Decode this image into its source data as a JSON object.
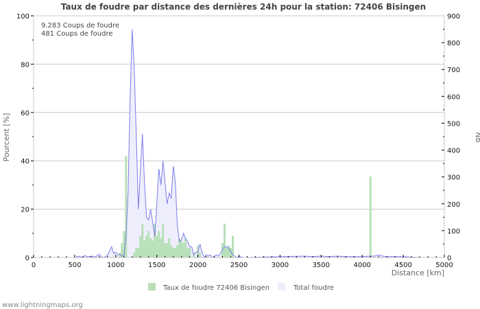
{
  "chart_data": {
    "type": "bar",
    "title": "Taux de foudre par distance des dernières 24h pour la station: 72406 Bisingen",
    "xlabel": "Distance   [km]",
    "ylabel": "Pourcent   [%]",
    "ylabel_right": "Nb",
    "xlim": [
      0,
      5000
    ],
    "ylim": [
      0,
      100
    ],
    "ylim_right": [
      0,
      900
    ],
    "x_ticks": [
      0,
      500,
      1000,
      1500,
      2000,
      2500,
      3000,
      3500,
      4000,
      4500,
      5000
    ],
    "y_ticks": [
      0,
      20,
      40,
      60,
      80,
      100
    ],
    "y_ticks_right": [
      0,
      100,
      200,
      300,
      400,
      500,
      600,
      700,
      800,
      900
    ],
    "grid": true,
    "legend_position": "bottom",
    "annotations": [
      "9.283  Coups de foudre",
      "481  Coups de foudre"
    ],
    "series": [
      {
        "name": "Taux de foudre 72406 Bisingen",
        "type": "bar",
        "axis": "left",
        "color": "#b7e0b8",
        "x": [
          1050,
          1075,
          1100,
          1125,
          1225,
          1250,
          1275,
          1300,
          1325,
          1350,
          1375,
          1400,
          1425,
          1450,
          1475,
          1500,
          1525,
          1550,
          1575,
          1600,
          1625,
          1650,
          1675,
          1700,
          1725,
          1750,
          1775,
          1800,
          1825,
          1850,
          1875,
          1900,
          1950,
          2000,
          2025,
          2300,
          2325,
          2350,
          2375,
          2400,
          2425,
          4100
        ],
        "values": [
          2,
          6,
          11,
          42,
          2,
          4,
          4,
          9,
          14,
          7,
          9,
          11,
          8,
          7,
          14,
          9,
          11,
          8,
          14,
          6,
          6,
          8,
          5,
          4,
          4,
          5,
          8,
          7,
          6,
          8,
          4,
          4,
          2,
          5,
          2,
          6,
          14,
          4,
          5,
          4,
          9,
          33.5
        ]
      },
      {
        "name": "Total foudre",
        "type": "area",
        "axis": "right",
        "color": "#7b7bea",
        "fill": "#eeeefc",
        "x": [
          0,
          500,
          550,
          600,
          625,
          650,
          700,
          750,
          800,
          825,
          850,
          900,
          950,
          975,
          1000,
          1025,
          1050,
          1075,
          1100,
          1125,
          1150,
          1175,
          1200,
          1225,
          1250,
          1275,
          1300,
          1325,
          1350,
          1375,
          1400,
          1425,
          1450,
          1475,
          1500,
          1525,
          1550,
          1575,
          1600,
          1625,
          1650,
          1675,
          1700,
          1725,
          1750,
          1775,
          1800,
          1825,
          1850,
          1875,
          1900,
          1925,
          1950,
          1975,
          2000,
          2025,
          2050,
          2075,
          2100,
          2125,
          2150,
          2175,
          2200,
          2225,
          2250,
          2275,
          2300,
          2325,
          2350,
          2375,
          2400,
          2425,
          2450,
          2475,
          2500,
          2550,
          3300,
          3400,
          3500,
          3600,
          3700,
          3800,
          3900,
          4000,
          4100,
          4150,
          4200,
          4250,
          4300,
          4350,
          4400,
          4500,
          4700,
          5000
        ],
        "values": [
          0,
          0,
          5,
          0,
          8,
          2,
          5,
          2,
          12,
          3,
          0,
          8,
          40,
          15,
          20,
          10,
          12,
          5,
          8,
          80,
          240,
          600,
          850,
          700,
          450,
          180,
          320,
          460,
          280,
          150,
          140,
          180,
          130,
          80,
          200,
          330,
          270,
          360,
          280,
          200,
          240,
          220,
          340,
          280,
          120,
          60,
          65,
          90,
          70,
          60,
          40,
          40,
          10,
          20,
          20,
          50,
          20,
          0,
          10,
          5,
          10,
          0,
          5,
          10,
          5,
          15,
          30,
          40,
          40,
          35,
          20,
          10,
          5,
          0,
          5,
          0,
          5,
          3,
          5,
          3,
          5,
          3,
          3,
          3,
          5,
          5,
          10,
          5,
          3,
          3,
          3,
          3,
          0,
          0
        ]
      }
    ]
  },
  "legend": {
    "item1": "Taux de foudre 72406 Bisingen",
    "item2": "Total foudre"
  },
  "info": {
    "line1": "9.283  Coups de foudre",
    "line2": "481  Coups de foudre"
  },
  "footer": "www.lightningmaps.org"
}
